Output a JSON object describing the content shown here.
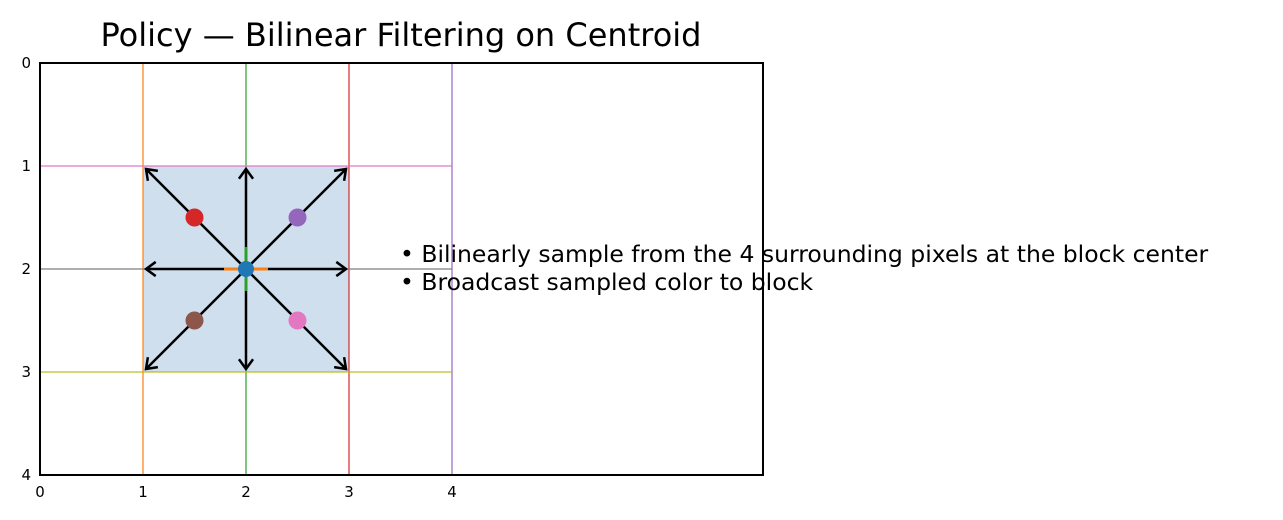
{
  "title": "Policy — Bilinear Filtering on Centroid",
  "notes": [
    "• Bilinearly sample from the 4 surrounding pixels at the block center",
    "• Broadcast sampled color to block"
  ],
  "chart_data": {
    "type": "scatter",
    "title": "Policy — Bilinear Filtering on Centroid",
    "xlim": [
      0,
      4
    ],
    "ylim": [
      4,
      0
    ],
    "y_inverted": true,
    "x_ticks": [
      "0",
      "1",
      "2",
      "3",
      "4"
    ],
    "y_ticks": [
      "0",
      "1",
      "2",
      "3",
      "4"
    ],
    "grid": false,
    "block": {
      "x": [
        1,
        3
      ],
      "y": [
        1,
        3
      ],
      "color": "#cfdfee"
    },
    "vertical_lines": [
      {
        "x": 1,
        "color": "#ff7f0e"
      },
      {
        "x": 2,
        "color": "#2ca02c"
      },
      {
        "x": 3,
        "color": "#d62728"
      },
      {
        "x": 4,
        "color": "#9467bd"
      }
    ],
    "horizontal_lines": [
      {
        "y": 1,
        "color": "#e377c2"
      },
      {
        "y": 2,
        "color": "#7f7f7f"
      },
      {
        "y": 3,
        "color": "#bcbd22"
      }
    ],
    "sample_points": [
      {
        "x": 1.5,
        "y": 1.5,
        "color": "#d62728"
      },
      {
        "x": 2.5,
        "y": 1.5,
        "color": "#9467bd"
      },
      {
        "x": 1.5,
        "y": 2.5,
        "color": "#8c564b"
      },
      {
        "x": 2.5,
        "y": 2.5,
        "color": "#e377c2"
      }
    ],
    "centroid": {
      "x": 2,
      "y": 2,
      "color": "#1f77b4",
      "cross_color": "#ff7f0e"
    },
    "arrows": [
      {
        "from": [
          2,
          2
        ],
        "to": [
          1,
          1
        ]
      },
      {
        "from": [
          2,
          2
        ],
        "to": [
          2,
          1
        ]
      },
      {
        "from": [
          2,
          2
        ],
        "to": [
          3,
          1
        ]
      },
      {
        "from": [
          2,
          2
        ],
        "to": [
          1,
          2
        ]
      },
      {
        "from": [
          2,
          2
        ],
        "to": [
          3,
          2
        ]
      },
      {
        "from": [
          2,
          2
        ],
        "to": [
          1,
          3
        ]
      },
      {
        "from": [
          2,
          2
        ],
        "to": [
          2,
          3
        ]
      },
      {
        "from": [
          2,
          2
        ],
        "to": [
          3,
          3
        ]
      }
    ]
  }
}
